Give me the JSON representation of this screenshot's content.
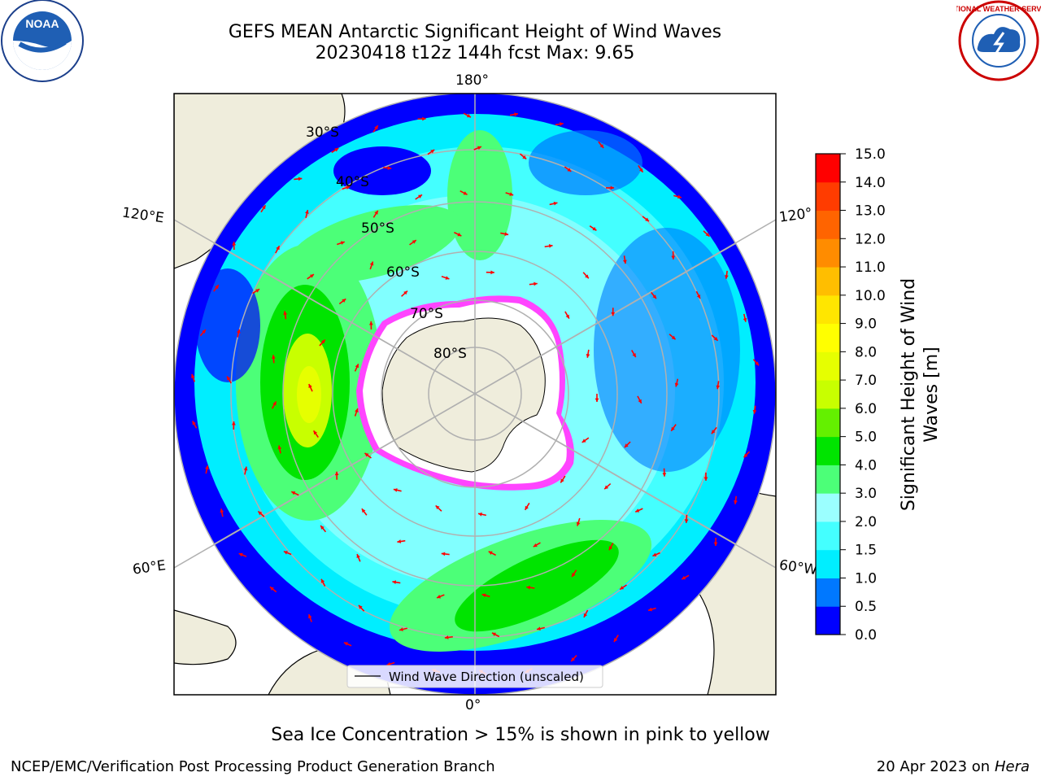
{
  "header": {
    "title_line1": "GEFS MEAN Antarctic Significant Height of Wind Waves",
    "title_line2": "20230418 t12z 144h fcst   Max: 9.65"
  },
  "logos": {
    "left": {
      "icon": "noaa-logo-icon",
      "text": "NOAA"
    },
    "right": {
      "icon": "nws-logo-icon",
      "text": "NATIONAL WEATHER SERVICE"
    }
  },
  "map": {
    "projection": "south-polar-stereographic",
    "longitude_labels": {
      "top": "180°",
      "upper_left": "120°E",
      "upper_right": "120°",
      "lower_left": "60°E",
      "lower_right": "60°W",
      "bottom": "0°"
    },
    "latitude_labels": [
      "30°S",
      "40°S",
      "50°S",
      "60°S",
      "70°S",
      "80°S"
    ],
    "legend_label": "Wind Wave Direction (unscaled)",
    "colors": {
      "land": "#efeddc",
      "ocean_low": "#0000ff",
      "ice_edge": "#ff44ff",
      "arrow": "#ff0000"
    }
  },
  "colorbar": {
    "label": "Significant Height of Wind Waves [m]",
    "label_line1": "Significant Height of Wind",
    "label_line2": "Waves [m]",
    "ticks": [
      "0.0",
      "0.5",
      "1.0",
      "1.5",
      "2.0",
      "3.0",
      "4.0",
      "5.0",
      "6.0",
      "7.0",
      "8.0",
      "9.0",
      "10.0",
      "11.0",
      "12.0",
      "13.0",
      "14.0",
      "15.0"
    ],
    "colors": [
      "#0000ff",
      "#0078ff",
      "#00eeff",
      "#44ffff",
      "#9bffff",
      "#4cff78",
      "#00e400",
      "#64f000",
      "#c8ff00",
      "#e6ff00",
      "#ffff00",
      "#ffe600",
      "#ffbe00",
      "#ff8c00",
      "#ff6400",
      "#ff3c00",
      "#ff0000"
    ]
  },
  "footer": {
    "note": "Sea Ice Concentration > 15% is shown in pink to yellow",
    "left": "NCEP/EMC/Verification Post Processing Product Generation Branch",
    "right_prefix": "20 Apr 2023 on ",
    "right_host": "Hera"
  }
}
